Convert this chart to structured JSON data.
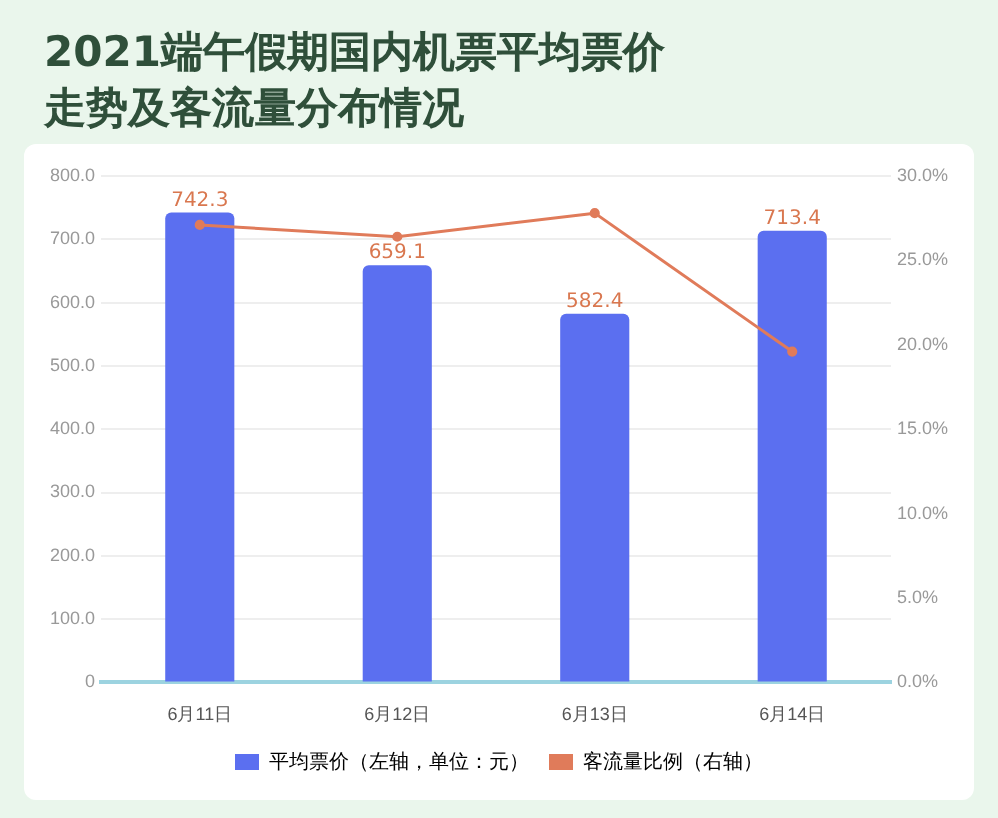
{
  "chart_data": {
    "type": "bar",
    "title": "2021端午假期国内机票平均票价走势及客流量分布情况",
    "categories": [
      "6月11日",
      "6月12日",
      "6月13日",
      "6月14日"
    ],
    "series": [
      {
        "name": "平均票价（左轴，单位：元）",
        "color": "#5b6ff0",
        "values": [
          742.3,
          659.1,
          582.4,
          713.4
        ],
        "value_labels": [
          "742.3",
          "659.1",
          "582.4",
          "713.4"
        ]
      },
      {
        "name": "客流量比例（右轴）",
        "type": "line",
        "axis": "y2",
        "color": "#e07b5a",
        "values": [
          27.1,
          26.4,
          27.8,
          19.6
        ]
      }
    ],
    "ylim": [
      0,
      800
    ],
    "yticks": [
      {
        "value": 0,
        "label": "0"
      },
      {
        "value": 100,
        "label": "100.0"
      },
      {
        "value": 200,
        "label": "200.0"
      },
      {
        "value": 300,
        "label": "300.0"
      },
      {
        "value": 400,
        "label": "400.0"
      },
      {
        "value": 500,
        "label": "500.0"
      },
      {
        "value": 600,
        "label": "600.0"
      },
      {
        "value": 700,
        "label": "700.0"
      },
      {
        "value": 800,
        "label": "800.0"
      }
    ],
    "y2lim": [
      0,
      30
    ],
    "y2ticks": [
      {
        "value": 0,
        "label": "0.0%"
      },
      {
        "value": 5,
        "label": "5.0%"
      },
      {
        "value": 10,
        "label": "10.0%"
      },
      {
        "value": 15,
        "label": "15.0%"
      },
      {
        "value": 20,
        "label": "20.0%"
      },
      {
        "value": 25,
        "label": "25.0%"
      },
      {
        "value": 30,
        "label": "30.0%"
      }
    ],
    "grid": "y",
    "legend": "bottom",
    "marker": "circle"
  }
}
